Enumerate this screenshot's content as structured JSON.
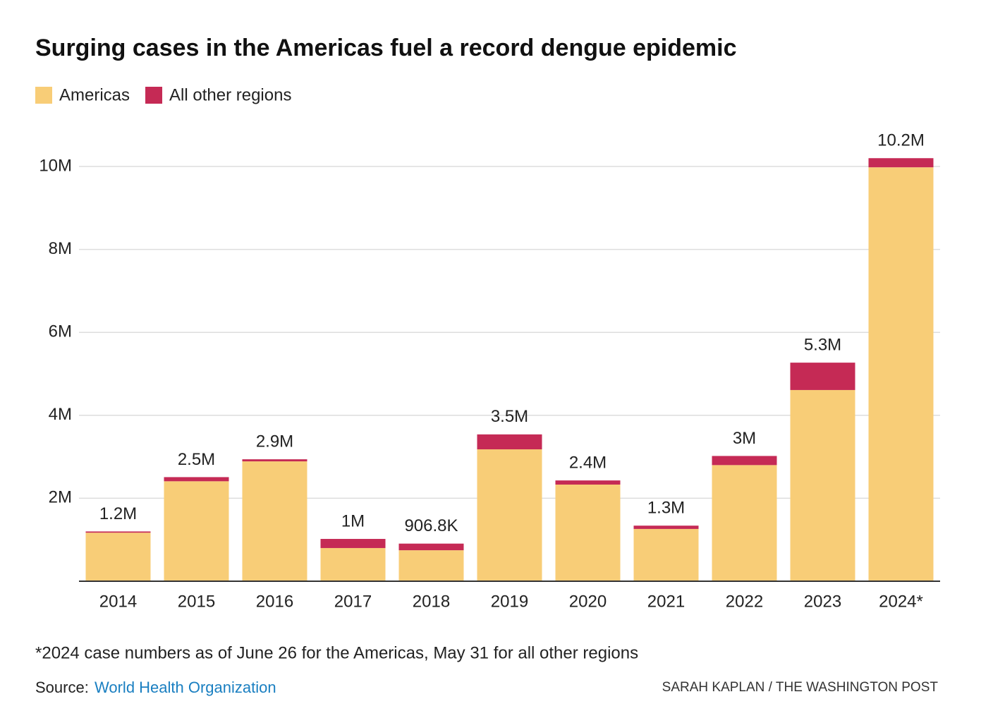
{
  "chart_data": {
    "type": "stacked_bar",
    "title": "Surging cases in the Americas fuel a record dengue epidemic",
    "categories": [
      "2014",
      "2015",
      "2016",
      "2017",
      "2018",
      "2019",
      "2020",
      "2021",
      "2022",
      "2023",
      "2024*"
    ],
    "series": [
      {
        "name": "Americas",
        "color": "#f8cd77",
        "values": [
          1170000,
          2410000,
          2890000,
          800000,
          746800,
          3180000,
          2330000,
          1260000,
          2800000,
          4610000,
          9980000
        ]
      },
      {
        "name": "All other regions",
        "color": "#c52a55",
        "values": [
          30000,
          100000,
          50000,
          220000,
          160000,
          360000,
          100000,
          80000,
          220000,
          660000,
          220000
        ]
      }
    ],
    "total_labels": [
      "1.2M",
      "2.5M",
      "2.9M",
      "1M",
      "906.8K",
      "3.5M",
      "2.4M",
      "1.3M",
      "3M",
      "5.3M",
      "10.2M"
    ],
    "ylim": [
      0,
      10000000
    ],
    "yticks": [
      {
        "value": 2000000,
        "label": "2M"
      },
      {
        "value": 4000000,
        "label": "4M"
      },
      {
        "value": 6000000,
        "label": "6M"
      },
      {
        "value": 8000000,
        "label": "8M"
      },
      {
        "value": 10000000,
        "label": "10M"
      }
    ],
    "grid": true,
    "footnote": "*2024 case numbers as of June 26 for the Americas, May 31 for all other regions",
    "source_label": "Source:",
    "source": "World Health Organization",
    "credit": "SARAH KAPLAN / THE WASHINGTON POST"
  }
}
